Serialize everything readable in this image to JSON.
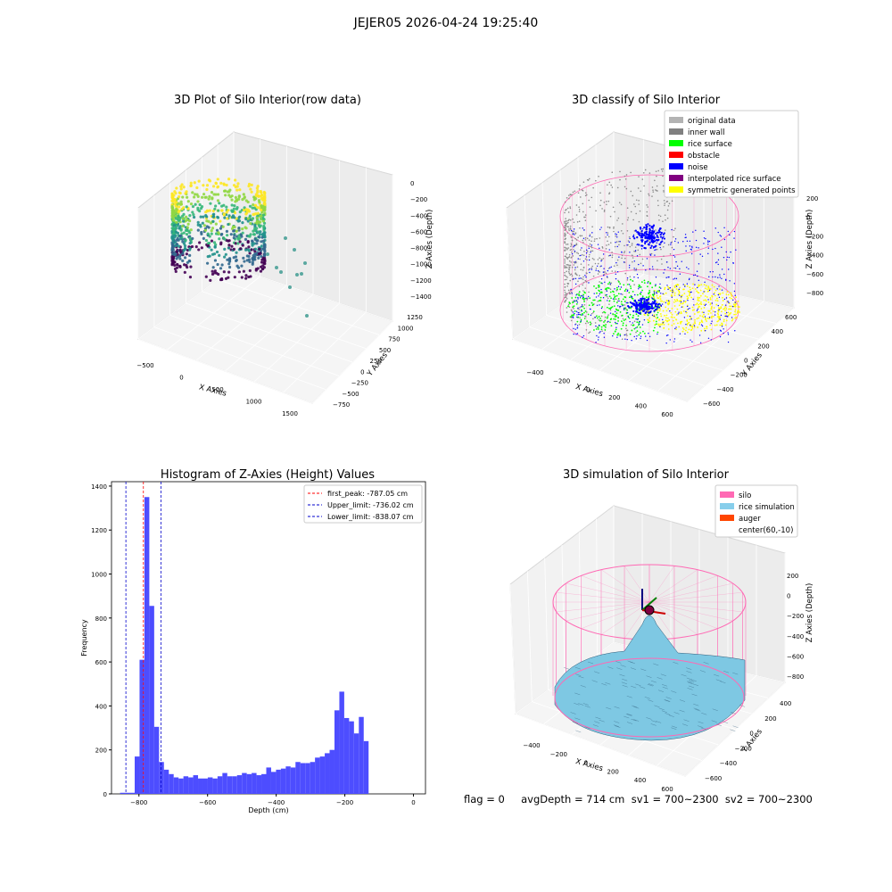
{
  "figure_title": "JEJER05 2026-04-24 19:25:40",
  "footer": "flag = 0     avgDepth = 714 cm  sv1 = 700~2300  sv2 = 700~2300",
  "colors": {
    "grid_pane": "#f2f2f2",
    "wall": "#8c8c8c",
    "rice_surface": "#00ff00",
    "noise": "#0000ff",
    "symmetric": "#ffff00",
    "silo": "#ff69b4",
    "rice_sim": "#7ec8e3",
    "hist_bar": "#4d4dff",
    "peak_line": "#ff0000",
    "limit_line": "#0000cc"
  },
  "chart_data": [
    {
      "type": "scatter3d",
      "title": "3D Plot of Silo Interior(row data)",
      "xlabel": "X Axies",
      "ylabel": "Y Axies",
      "zlabel": "Z Axies (Depth)",
      "xticks": [
        "−500",
        "0",
        "500",
        "1000",
        "1500"
      ],
      "yticks": [
        "−750",
        "−500",
        "−250",
        "0",
        "250",
        "500",
        "750",
        "1000",
        "1250"
      ],
      "zticks": [
        "0",
        "−200",
        "−400",
        "−600",
        "−800",
        "−1000",
        "−1200",
        "−1400"
      ],
      "xlim": [
        -600,
        1600
      ],
      "ylim": [
        -800,
        1300
      ],
      "zlim": [
        -1500,
        100
      ]
    },
    {
      "type": "scatter3d",
      "title": "3D classify of Silo Interior",
      "xlabel": "X Axies",
      "ylabel": "Y Axies",
      "zlabel": "Z Axies (Depth)",
      "xticks": [
        "−400",
        "−200",
        "0",
        "200",
        "400",
        "600"
      ],
      "yticks": [
        "−600",
        "−400",
        "−200",
        "0",
        "200",
        "400",
        "600"
      ],
      "zticks": [
        "200",
        "0",
        "−200",
        "−400",
        "−600",
        "−800"
      ],
      "xlim": [
        -500,
        700
      ],
      "ylim": [
        -700,
        700
      ],
      "zlim": [
        -900,
        300
      ],
      "legend_position": "top-right",
      "legend": [
        {
          "label": "original data",
          "color": "#b3b3b3"
        },
        {
          "label": "inner wall",
          "color": "#808080"
        },
        {
          "label": "rice surface",
          "color": "#00ff00"
        },
        {
          "label": "obstacle",
          "color": "#ff0000"
        },
        {
          "label": "noise",
          "color": "#0000ff"
        },
        {
          "label": "interpolated rice surface",
          "color": "#800080"
        },
        {
          "label": "symmetric generated points",
          "color": "#ffff00"
        }
      ]
    },
    {
      "type": "bar",
      "title": "Histogram of Z-Axies (Height) Values",
      "xlabel": "Depth (cm)",
      "ylabel": "Frequency",
      "xlim": [
        -880,
        35
      ],
      "ylim": [
        0,
        1420
      ],
      "xticks": [
        -800,
        -600,
        -400,
        -200,
        0
      ],
      "xtick_labels": [
        "−800",
        "−600",
        "−400",
        "−200",
        "0"
      ],
      "yticks": [
        0,
        200,
        400,
        600,
        800,
        1000,
        1200,
        1400
      ],
      "bin_start": -855,
      "bin_width": 14.2,
      "values": [
        5,
        5,
        5,
        170,
        610,
        1350,
        855,
        305,
        145,
        110,
        90,
        75,
        70,
        80,
        75,
        85,
        70,
        70,
        75,
        70,
        80,
        95,
        80,
        80,
        85,
        95,
        90,
        95,
        85,
        90,
        120,
        100,
        110,
        115,
        125,
        120,
        145,
        140,
        140,
        145,
        165,
        170,
        185,
        200,
        380,
        465,
        345,
        330,
        275,
        350,
        240
      ],
      "legend_position": "top-right",
      "vlines": [
        {
          "label": "first_peak: -787.05 cm",
          "x": -787.05,
          "color": "#ff0000"
        },
        {
          "label": "Upper_limit: -736.02 cm",
          "x": -736.02,
          "color": "#0000cc"
        },
        {
          "label": "Lower_limit: -838.07 cm",
          "x": -838.07,
          "color": "#0000cc"
        }
      ]
    },
    {
      "type": "surface3d",
      "title": "3D simulation of Silo Interior",
      "xlabel": "X Axies",
      "ylabel": "Y Axies",
      "zlabel": "Z Axies (Depth)",
      "xticks": [
        "−400",
        "−200",
        "0",
        "200",
        "400",
        "600"
      ],
      "yticks": [
        "−600",
        "−400",
        "−200",
        "0",
        "200",
        "400"
      ],
      "zticks": [
        "200",
        "0",
        "−200",
        "−400",
        "−600",
        "−800"
      ],
      "xlim": [
        -500,
        700
      ],
      "ylim": [
        -700,
        500
      ],
      "zlim": [
        -900,
        300
      ],
      "legend_position": "top-right",
      "legend": [
        {
          "label": "silo",
          "color": "#ff69b4"
        },
        {
          "label": "rice simulation",
          "color": "#87ceeb"
        },
        {
          "label": "auger",
          "color": "#ff4500"
        },
        {
          "label": "center(60,-10)",
          "color": ""
        }
      ]
    }
  ]
}
